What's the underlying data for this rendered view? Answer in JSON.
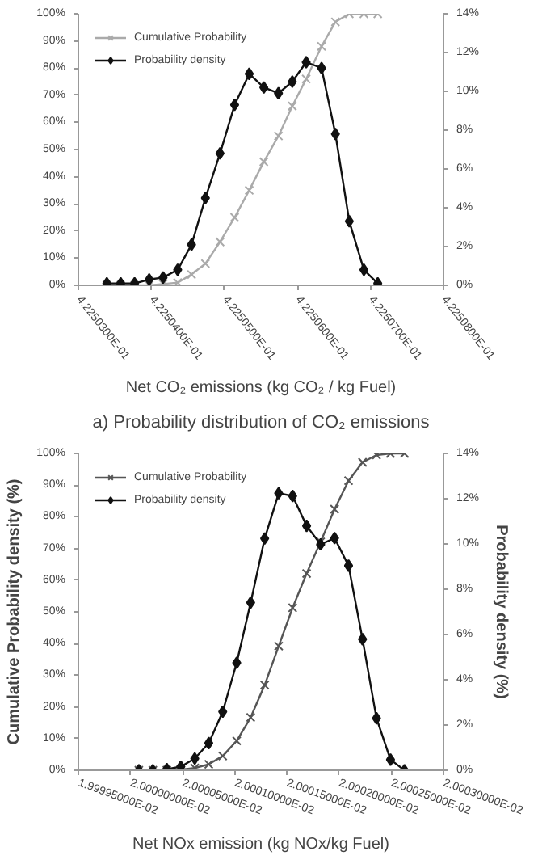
{
  "chart_data": [
    {
      "type": "line",
      "xlabel": "Net CO₂ emissions (kg CO₂ / kg Fuel)",
      "annotations": [
        "a) Probability distribution of CO₂ emissions"
      ],
      "x": [
        0.42250339,
        0.42250358,
        0.42250377,
        0.42250397,
        0.42250416,
        0.42250436,
        0.42250455,
        0.42250474,
        0.42250494,
        0.42250514,
        0.42250534,
        0.42250554,
        0.42250574,
        0.42250593,
        0.42250612,
        0.42250633,
        0.42250652,
        0.42250671,
        0.42250691,
        0.4225071
      ],
      "series": [
        {
          "name": "Cumulative Probability",
          "color": "#aaaaaa",
          "marker": "cross",
          "values": [
            0,
            0,
            0,
            0,
            0.5,
            1,
            4,
            8,
            16,
            25,
            35,
            45.5,
            55,
            66,
            76,
            88,
            97,
            100,
            100,
            100
          ]
        },
        {
          "name": "Probability density",
          "color": "#111111",
          "marker": "diamond",
          "axis": "y2",
          "values": [
            0.1,
            0.1,
            0.1,
            0.3,
            0.4,
            0.8,
            2.1,
            4.5,
            6.8,
            9.3,
            10.9,
            10.2,
            9.9,
            10.5,
            11.5,
            11.2,
            7.8,
            3.3,
            0.8,
            0.1
          ]
        }
      ],
      "xlim": [
        0.422503,
        0.422508
      ],
      "xticks": [
        {
          "value": 0.422503,
          "label": "4.2250300E-01"
        },
        {
          "value": 0.422504,
          "label": "4.2250400E-01"
        },
        {
          "value": 0.422505,
          "label": "4.2250500E-01"
        },
        {
          "value": 0.422506,
          "label": "4.2250600E-01"
        },
        {
          "value": 0.422507,
          "label": "4.2250700E-01"
        },
        {
          "value": 0.422508,
          "label": "4.2250800E-01"
        }
      ],
      "ylim": [
        0,
        100
      ],
      "yticks": [
        {
          "value": 0,
          "label": "0%"
        },
        {
          "value": 10,
          "label": "10%"
        },
        {
          "value": 20,
          "label": "20%"
        },
        {
          "value": 30,
          "label": "30%"
        },
        {
          "value": 40,
          "label": "40%"
        },
        {
          "value": 50,
          "label": "50%"
        },
        {
          "value": 60,
          "label": "60%"
        },
        {
          "value": 70,
          "label": "70%"
        },
        {
          "value": 80,
          "label": "80%"
        },
        {
          "value": 90,
          "label": "90%"
        },
        {
          "value": 100,
          "label": "100%"
        }
      ],
      "y2lim": [
        0,
        14
      ],
      "y2ticks": [
        {
          "value": 0,
          "label": "0%"
        },
        {
          "value": 2,
          "label": "2%"
        },
        {
          "value": 4,
          "label": "4%"
        },
        {
          "value": 6,
          "label": "6%"
        },
        {
          "value": 8,
          "label": "8%"
        },
        {
          "value": 10,
          "label": "10%"
        },
        {
          "value": 12,
          "label": "12%"
        },
        {
          "value": 14,
          "label": "14%"
        }
      ],
      "legend": "top left"
    },
    {
      "type": "line",
      "xlabel": "Net NOx emission (kg NOx/kg Fuel)",
      "ylabel": "Cumulative Probability density (%)",
      "y2label": "Probability density (%)",
      "x": [
        0.02000008,
        0.020000214,
        0.020000348,
        0.020000482,
        0.020000616,
        0.02000075,
        0.020000884,
        0.020001018,
        0.020001152,
        0.020001286,
        0.02000142,
        0.020001554,
        0.020001688,
        0.020001822,
        0.020001956,
        0.02000209,
        0.020002224,
        0.020002358,
        0.020002492,
        0.020002626
      ],
      "series": [
        {
          "name": "Cumulative Probability",
          "color": "#555555",
          "marker": "cross",
          "values": [
            0,
            0,
            0,
            0.2,
            0.7,
            1.9,
            4.5,
            9.3,
            16.7,
            26.9,
            39.2,
            51.3,
            62.1,
            72.1,
            82.4,
            91.4,
            97.2,
            99.5,
            100,
            100
          ]
        },
        {
          "name": "Probability density",
          "color": "#111111",
          "marker": "diamond",
          "axis": "y2",
          "values": [
            0,
            0,
            0.05,
            0.16,
            0.52,
            1.2,
            2.59,
            4.75,
            7.41,
            10.24,
            12.24,
            12.12,
            10.8,
            9.98,
            10.26,
            9.04,
            5.79,
            2.3,
            0.47,
            0
          ]
        }
      ],
      "xlim": [
        0.0199995,
        0.020003
      ],
      "xticks": [
        {
          "value": 0.0199995,
          "label": "1.99995000E-02"
        },
        {
          "value": 0.02,
          "label": "2.00000000E-02"
        },
        {
          "value": 0.0200005,
          "label": "2.00005000E-02"
        },
        {
          "value": 0.020001,
          "label": "2.00010000E-02"
        },
        {
          "value": 0.0200015,
          "label": "2.00015000E-02"
        },
        {
          "value": 0.020002,
          "label": "2.00020000E-02"
        },
        {
          "value": 0.0200025,
          "label": "2.00025000E-02"
        },
        {
          "value": 0.020003,
          "label": "2.00030000E-02"
        }
      ],
      "ylim": [
        0,
        100
      ],
      "yticks": [
        {
          "value": 0,
          "label": "0%"
        },
        {
          "value": 10,
          "label": "10%"
        },
        {
          "value": 20,
          "label": "20%"
        },
        {
          "value": 30,
          "label": "30%"
        },
        {
          "value": 40,
          "label": "40%"
        },
        {
          "value": 50,
          "label": "50%"
        },
        {
          "value": 60,
          "label": "60%"
        },
        {
          "value": 70,
          "label": "70%"
        },
        {
          "value": 80,
          "label": "80%"
        },
        {
          "value": 90,
          "label": "90%"
        },
        {
          "value": 100,
          "label": "100%"
        }
      ],
      "y2lim": [
        0,
        14
      ],
      "y2ticks": [
        {
          "value": 0,
          "label": "0%"
        },
        {
          "value": 2,
          "label": "2%"
        },
        {
          "value": 4,
          "label": "4%"
        },
        {
          "value": 6,
          "label": "6%"
        },
        {
          "value": 8,
          "label": "8%"
        },
        {
          "value": 10,
          "label": "10%"
        },
        {
          "value": 12,
          "label": "12%"
        },
        {
          "value": 14,
          "label": "14%"
        }
      ],
      "legend": "top left"
    }
  ]
}
